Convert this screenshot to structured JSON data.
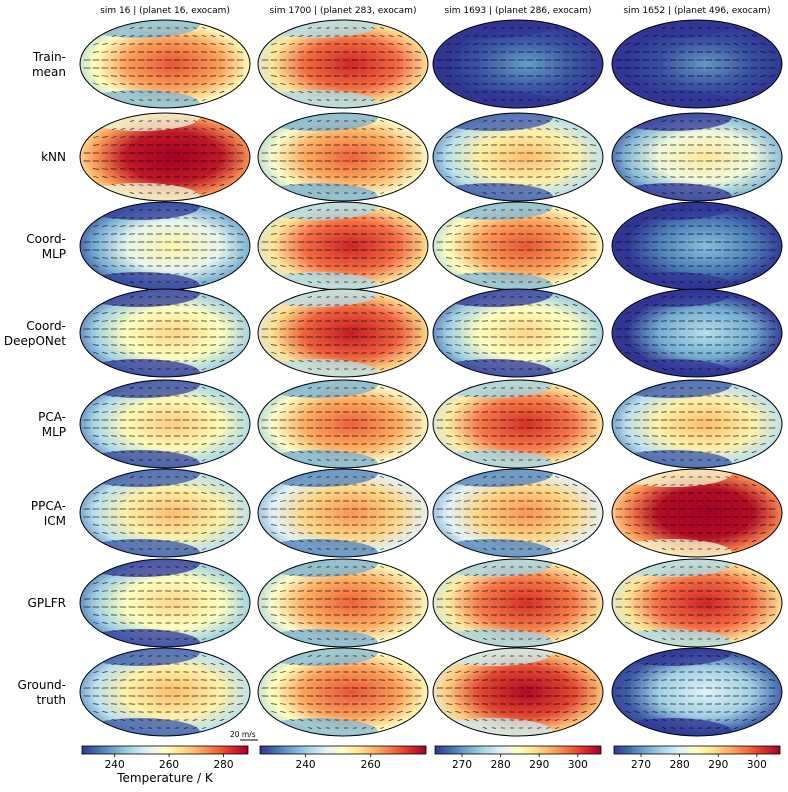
{
  "chart_data": {
    "type": "heatmap",
    "description_rows": "rows are model variants, columns are simulations",
    "columns": [
      {
        "title": "sim 16 | (planet 16, exocam)",
        "colorbar": {
          "ticks": [
            240,
            260,
            280
          ],
          "range": [
            228,
            289
          ]
        }
      },
      {
        "title": "sim 1700 | (planet 283, exocam)",
        "colorbar": {
          "ticks": [
            240,
            260
          ],
          "range": [
            226,
            277
          ]
        }
      },
      {
        "title": "sim 1693 | (planet 286, exocam)",
        "colorbar": {
          "ticks": [
            270,
            280,
            290,
            300
          ],
          "range": [
            263,
            306
          ]
        }
      },
      {
        "title": "sim 1652 | (planet 496, exocam)",
        "colorbar": {
          "ticks": [
            270,
            280,
            290,
            300
          ],
          "range": [
            263,
            306
          ]
        }
      }
    ],
    "rows": [
      {
        "label_line1": "Train-",
        "label_line2": "mean"
      },
      {
        "label_line1": "kNN",
        "label_line2": ""
      },
      {
        "label_line1": "Coord-",
        "label_line2": "MLP"
      },
      {
        "label_line1": "Coord-",
        "label_line2": "DeepONet"
      },
      {
        "label_line1": "PCA-",
        "label_line2": "MLP"
      },
      {
        "label_line1": "PPCA-",
        "label_line2": "ICM"
      },
      {
        "label_line1": "GPLFR",
        "label_line2": ""
      },
      {
        "label_line1": "Ground-",
        "label_line2": "truth"
      }
    ],
    "panel_warmth": [
      [
        0.72,
        0.8,
        0.05,
        0.04
      ],
      [
        0.95,
        0.7,
        0.55,
        0.45
      ],
      [
        0.42,
        0.8,
        0.72,
        0.12
      ],
      [
        0.5,
        0.82,
        0.5,
        0.2
      ],
      [
        0.52,
        0.7,
        0.78,
        0.55
      ],
      [
        0.55,
        0.62,
        0.62,
        0.97
      ],
      [
        0.5,
        0.7,
        0.78,
        0.8
      ],
      [
        0.55,
        0.72,
        0.86,
        0.28
      ]
    ],
    "colorbar_label": "Temperature / K",
    "quiver_key": "20 m/s",
    "colormap": [
      "#313695",
      "#4575b4",
      "#74add1",
      "#abd9e9",
      "#e0f3f8",
      "#ffffbf",
      "#fee090",
      "#fdae61",
      "#f46d43",
      "#d73027",
      "#a50026"
    ]
  }
}
